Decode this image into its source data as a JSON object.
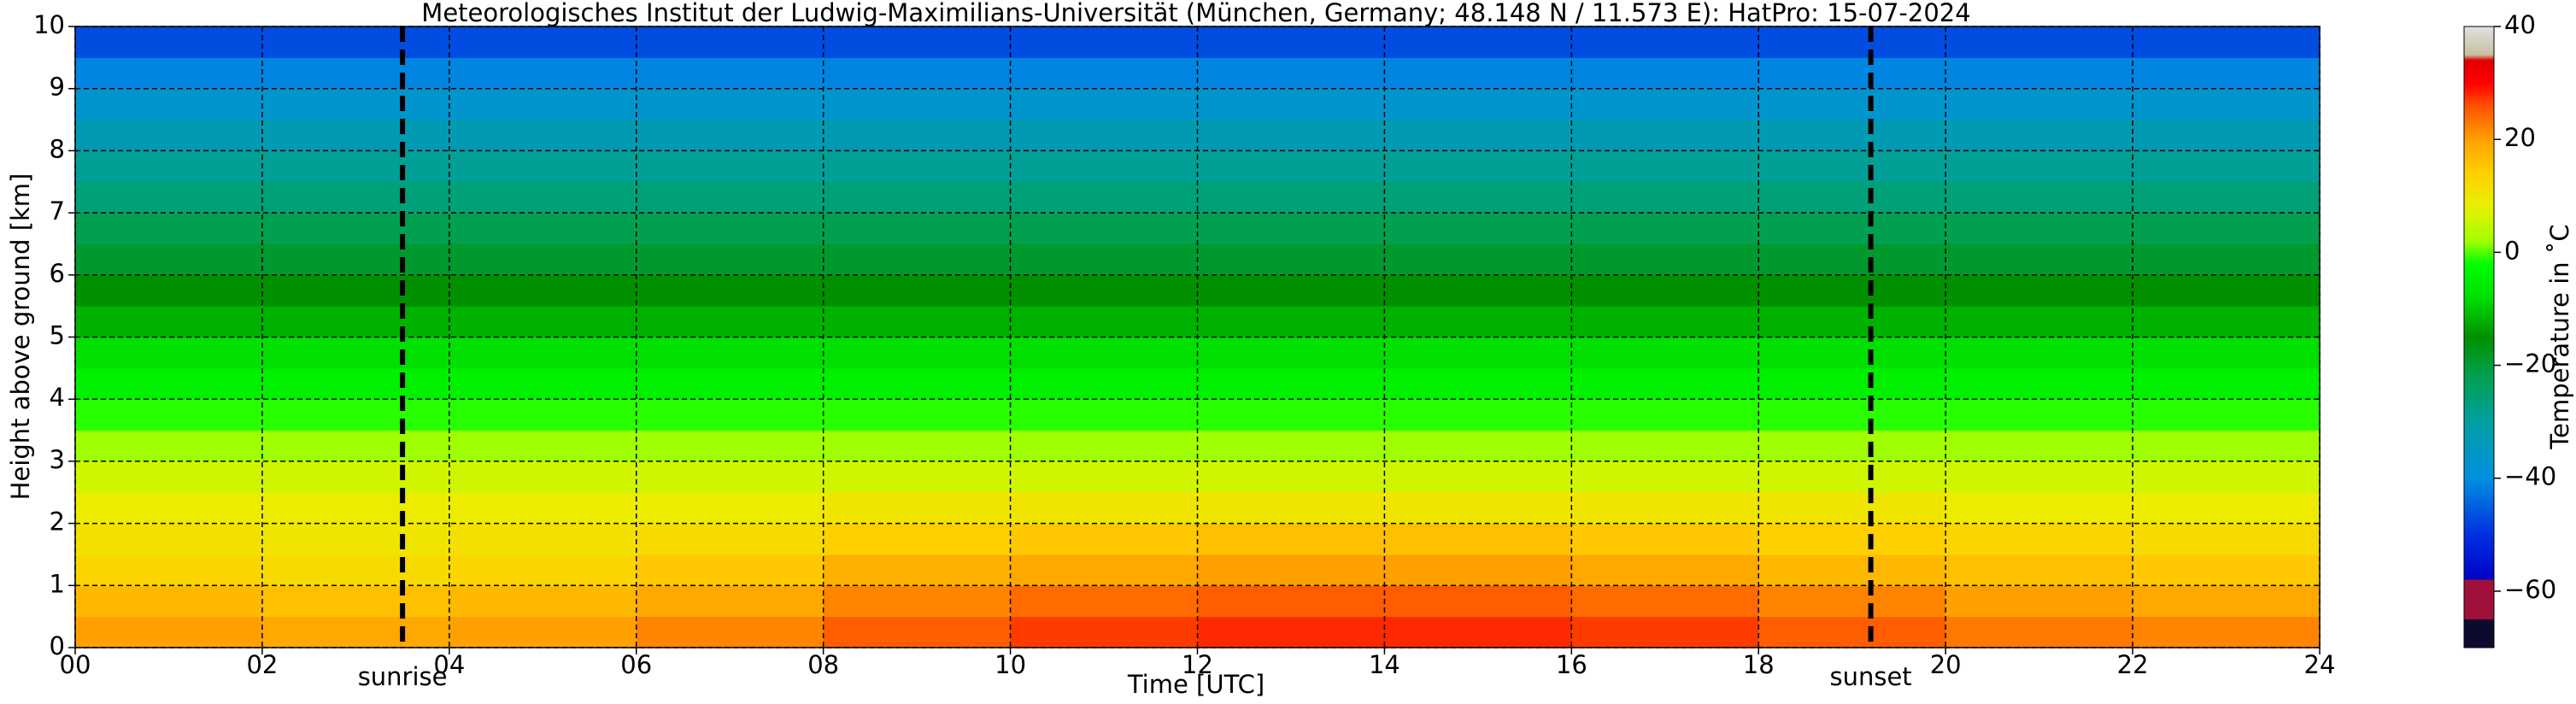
{
  "chart_data": {
    "type": "heatmap",
    "title": "Meteorologisches Institut der Ludwig-Maximilians-Universität (München, Germany; 48.148 N / 11.573 E):    HatPro: 15-07-2024",
    "xlabel": "Time [UTC]",
    "ylabel": "Height above ground [km]",
    "colorbar_label": "Temperature in ˚C",
    "xlim": [
      0,
      24
    ],
    "xticks": [
      {
        "value": 0,
        "label": "00"
      },
      {
        "value": 2,
        "label": "02"
      },
      {
        "value": 4,
        "label": "04"
      },
      {
        "value": 6,
        "label": "06"
      },
      {
        "value": 8,
        "label": "08"
      },
      10,
      12,
      14,
      16,
      18,
      20,
      22,
      24
    ],
    "ylim": [
      0,
      10
    ],
    "yticks": [
      0,
      1,
      2,
      3,
      4,
      5,
      6,
      7,
      8,
      9,
      10
    ],
    "clim": [
      -70,
      40
    ],
    "cticks": [
      {
        "value": -60,
        "label": "−60"
      },
      {
        "value": -40,
        "label": "−40"
      },
      {
        "value": -20,
        "label": "−20"
      },
      0,
      20,
      40
    ],
    "grid": true,
    "xbins": [
      0,
      2,
      4,
      6,
      8,
      10,
      12,
      14,
      16,
      18,
      20,
      22,
      24
    ],
    "ybins": [
      0,
      0.5,
      1,
      1.5,
      2,
      2.5,
      3,
      3.5,
      4,
      4.5,
      5,
      5.5,
      6,
      6.5,
      7,
      7.5,
      8,
      8.5,
      9,
      9.5,
      10
    ],
    "z": [
      [
        20,
        19,
        20,
        22,
        25,
        27,
        28,
        28,
        27,
        25,
        23,
        22
      ],
      [
        17,
        16,
        17,
        19,
        22,
        24,
        25,
        25,
        24,
        22,
        20,
        19
      ],
      [
        13,
        12,
        13,
        15,
        18,
        19,
        20,
        20,
        19,
        17,
        16,
        15
      ],
      [
        11,
        10,
        11,
        12,
        14,
        15,
        16,
        16,
        15,
        14,
        13,
        12
      ],
      [
        9,
        9,
        9,
        9,
        10,
        10,
        10,
        10,
        10,
        10,
        9,
        9
      ],
      [
        6,
        6,
        6,
        6,
        6,
        6,
        6,
        6,
        6,
        6,
        6,
        6
      ],
      [
        2,
        2,
        2,
        2,
        2,
        2,
        2,
        2,
        2,
        2,
        2,
        2
      ],
      [
        -1,
        -1,
        -1,
        -1,
        -1,
        -1,
        -1,
        -1,
        -1,
        -1,
        -1,
        -1
      ],
      [
        -5,
        -5,
        -5,
        -5,
        -5,
        -5,
        -5,
        -5,
        -5,
        -5,
        -5,
        -5
      ],
      [
        -8,
        -8,
        -8,
        -8,
        -8,
        -8,
        -8,
        -8,
        -8,
        -8,
        -8,
        -8
      ],
      [
        -12,
        -12,
        -12,
        -12,
        -12,
        -12,
        -12,
        -12,
        -12,
        -12,
        -12,
        -12
      ],
      [
        -15,
        -15,
        -15,
        -15,
        -15,
        -15,
        -15,
        -15,
        -15,
        -15,
        -15,
        -15
      ],
      [
        -19,
        -19,
        -19,
        -19,
        -19,
        -19,
        -19,
        -19,
        -19,
        -19,
        -19,
        -19
      ],
      [
        -22,
        -22,
        -22,
        -22,
        -22,
        -22,
        -22,
        -22,
        -22,
        -22,
        -22,
        -22
      ],
      [
        -26,
        -26,
        -26,
        -26,
        -26,
        -26,
        -26,
        -26,
        -26,
        -26,
        -26,
        -26
      ],
      [
        -29,
        -29,
        -29,
        -29,
        -29,
        -29,
        -29,
        -29,
        -29,
        -29,
        -29,
        -29
      ],
      [
        -33,
        -33,
        -33,
        -33,
        -33,
        -33,
        -33,
        -33,
        -33,
        -33,
        -33,
        -33
      ],
      [
        -37,
        -37,
        -37,
        -37,
        -37,
        -37,
        -37,
        -37,
        -37,
        -37,
        -37,
        -37
      ],
      [
        -41,
        -41,
        -41,
        -41,
        -41,
        -41,
        -41,
        -41,
        -41,
        -41,
        -41,
        -41
      ],
      [
        -47,
        -47,
        -47,
        -47,
        -47,
        -47,
        -47,
        -47,
        -47,
        -47,
        -47,
        -47
      ]
    ],
    "colorscale": [
      [
        -70,
        "#0d0a30"
      ],
      [
        -65,
        "#0d0a30"
      ],
      [
        -65,
        "#a0103a"
      ],
      [
        -58,
        "#a0103a"
      ],
      [
        -58,
        "#0000c8"
      ],
      [
        -50,
        "#0030e0"
      ],
      [
        -40,
        "#0090e0"
      ],
      [
        -30,
        "#00a0a0"
      ],
      [
        -22,
        "#00a050"
      ],
      [
        -15,
        "#009000"
      ],
      [
        -8,
        "#00e000"
      ],
      [
        -2,
        "#00ff00"
      ],
      [
        2,
        "#a0ff00"
      ],
      [
        8,
        "#e8f000"
      ],
      [
        14,
        "#ffd000"
      ],
      [
        20,
        "#ffa000"
      ],
      [
        26,
        "#ff5000"
      ],
      [
        30,
        "#ff0000"
      ],
      [
        34,
        "#e00000"
      ],
      [
        35,
        "#c8c0a0"
      ],
      [
        40,
        "#e0e0e0"
      ]
    ],
    "annotations": [
      {
        "text": "sunrise",
        "x": 3.5
      },
      {
        "text": "sunset",
        "x": 19.2
      }
    ]
  }
}
